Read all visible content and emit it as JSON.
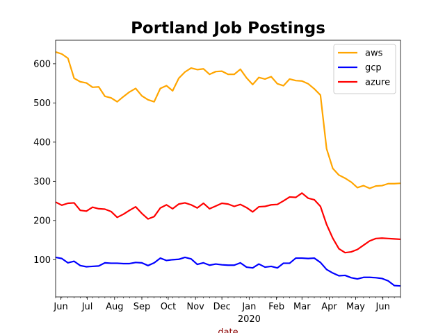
{
  "chart_data": {
    "type": "line",
    "title": "Portland Job Postings",
    "xlabel": "date",
    "ylabel": "",
    "xlim": [
      "2019-05-26",
      "2020-06-21"
    ],
    "ylim": [
      5,
      660
    ],
    "y_ticks": [
      100,
      200,
      300,
      400,
      500,
      600
    ],
    "x_ticks": [
      {
        "date": "2019-06-01",
        "label": "Jun"
      },
      {
        "date": "2019-07-01",
        "label": "Jul"
      },
      {
        "date": "2019-08-01",
        "label": "Aug"
      },
      {
        "date": "2019-09-01",
        "label": "Sep"
      },
      {
        "date": "2019-10-01",
        "label": "Oct"
      },
      {
        "date": "2019-11-01",
        "label": "Nov"
      },
      {
        "date": "2019-12-01",
        "label": "Dec"
      },
      {
        "date": "2020-01-01",
        "label": "Jan",
        "sublabel": "2020"
      },
      {
        "date": "2020-02-01",
        "label": "Feb"
      },
      {
        "date": "2020-03-01",
        "label": "Mar"
      },
      {
        "date": "2020-04-01",
        "label": "Apr"
      },
      {
        "date": "2020-05-01",
        "label": "May"
      },
      {
        "date": "2020-06-01",
        "label": "Jun"
      }
    ],
    "x": [
      "2019-05-26",
      "2019-06-02",
      "2019-06-09",
      "2019-06-16",
      "2019-06-23",
      "2019-06-30",
      "2019-07-07",
      "2019-07-14",
      "2019-07-21",
      "2019-07-28",
      "2019-08-04",
      "2019-08-11",
      "2019-08-18",
      "2019-08-25",
      "2019-09-01",
      "2019-09-08",
      "2019-09-15",
      "2019-09-22",
      "2019-09-29",
      "2019-10-06",
      "2019-10-13",
      "2019-10-20",
      "2019-10-27",
      "2019-11-03",
      "2019-11-10",
      "2019-11-17",
      "2019-11-24",
      "2019-12-01",
      "2019-12-08",
      "2019-12-15",
      "2019-12-22",
      "2019-12-29",
      "2020-01-05",
      "2020-01-12",
      "2020-01-19",
      "2020-01-26",
      "2020-02-02",
      "2020-02-09",
      "2020-02-16",
      "2020-02-23",
      "2020-03-01",
      "2020-03-08",
      "2020-03-15",
      "2020-03-22",
      "2020-03-29",
      "2020-04-05",
      "2020-04-12",
      "2020-04-19",
      "2020-04-26",
      "2020-05-03",
      "2020-05-10",
      "2020-05-17",
      "2020-05-24",
      "2020-05-31",
      "2020-06-07",
      "2020-06-14",
      "2020-06-21"
    ],
    "series": [
      {
        "name": "aws",
        "color": "#ffa500",
        "values": [
          630,
          625,
          614,
          563,
          554,
          551,
          540,
          541,
          517,
          513,
          503,
          516,
          528,
          537,
          518,
          508,
          503,
          537,
          544,
          531,
          563,
          579,
          589,
          585,
          587,
          573,
          580,
          581,
          573,
          573,
          586,
          564,
          547,
          565,
          561,
          567,
          549,
          544,
          561,
          557,
          556,
          549,
          536,
          520,
          383,
          333,
          316,
          308,
          298,
          284,
          289,
          282,
          288,
          289,
          294,
          294,
          295
        ]
      },
      {
        "name": "gcp",
        "color": "#0000ff",
        "values": [
          106,
          103,
          92,
          96,
          85,
          82,
          83,
          84,
          92,
          91,
          91,
          90,
          90,
          93,
          92,
          85,
          92,
          104,
          98,
          100,
          101,
          106,
          102,
          88,
          92,
          86,
          89,
          87,
          86,
          86,
          92,
          81,
          79,
          89,
          81,
          83,
          79,
          91,
          91,
          104,
          104,
          103,
          104,
          93,
          75,
          66,
          59,
          60,
          54,
          51,
          55,
          55,
          54,
          52,
          46,
          34,
          33
        ]
      },
      {
        "name": "azure",
        "color": "#ff0000",
        "values": [
          247,
          239,
          244,
          245,
          226,
          224,
          234,
          230,
          229,
          223,
          208,
          216,
          226,
          235,
          218,
          204,
          210,
          232,
          240,
          230,
          242,
          245,
          240,
          232,
          244,
          230,
          237,
          244,
          242,
          236,
          241,
          233,
          222,
          235,
          236,
          240,
          241,
          250,
          260,
          259,
          270,
          257,
          253,
          236,
          190,
          155,
          128,
          118,
          120,
          126,
          137,
          148,
          154,
          155,
          154,
          153,
          152
        ]
      }
    ],
    "legend_position": "top-right",
    "grid": false
  }
}
